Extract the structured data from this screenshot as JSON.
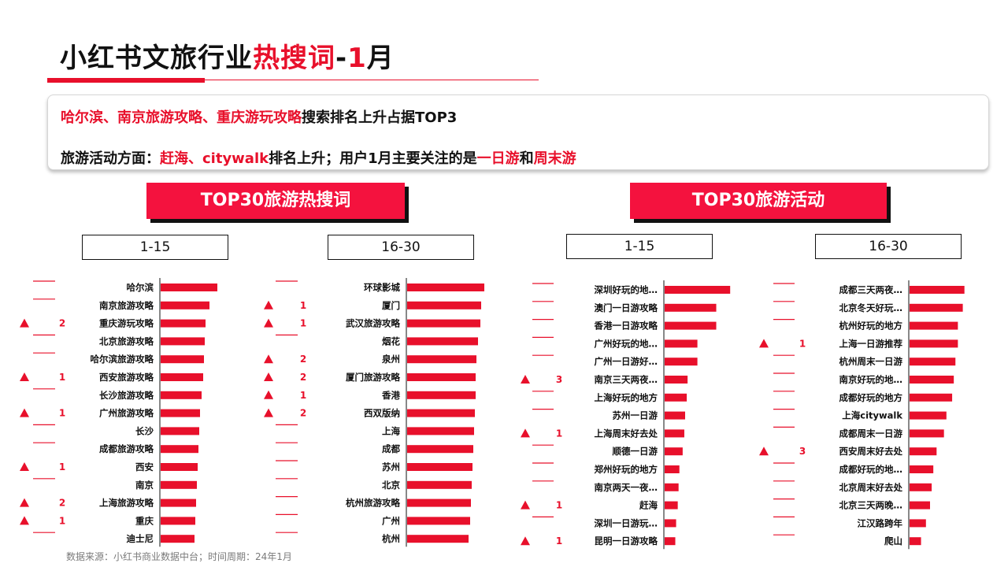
{
  "title": {
    "part1": "小红书文旅行业",
    "part2": "热搜词",
    "part3": "-",
    "part4": "1",
    "part5": "月"
  },
  "summary": {
    "line1": {
      "red": "哈尔滨、南京旅游攻略、重庆游玩攻略",
      "rest": "搜索排名上升占据TOP3"
    },
    "line2": {
      "a": "旅游活动方面：",
      "b": "赶海、citywalk",
      "c": "排名上升；用户1月主要关注的是",
      "d": "一日游",
      "e": "和",
      "f": "周末游"
    }
  },
  "banners": {
    "left": "TOP30旅游热搜词",
    "right": "TOP30旅游活动"
  },
  "ranges": {
    "r1": "1-15",
    "r2": "16-30",
    "r3": "1-15",
    "r4": "16-30"
  },
  "colors": {
    "accent": "#e8102b",
    "bar": "#e8102b"
  },
  "source": "数据来源：小红书商业数据中台；时间周期：24年1月",
  "chart_data": [
    {
      "type": "bar",
      "orientation": "horizontal",
      "categories": [
        "哈尔滨",
        "南京旅游攻略",
        "重庆游玩攻略",
        "北京旅游攻略",
        "哈尔滨旅游攻略",
        "西安旅游攻略",
        "长沙旅游攻略",
        "广州旅游攻略",
        "长沙",
        "成都旅游攻略",
        "西安",
        "南京",
        "上海旅游攻略",
        "重庆",
        "迪士尼"
      ],
      "values": [
        72,
        62,
        57,
        56,
        55,
        54,
        52,
        50,
        49,
        48,
        47,
        46,
        45,
        44,
        43
      ],
      "rank_change": [
        null,
        null,
        2,
        null,
        null,
        1,
        null,
        1,
        null,
        null,
        1,
        null,
        2,
        1,
        null
      ]
    },
    {
      "type": "bar",
      "orientation": "horizontal",
      "categories": [
        "环球影城",
        "厦门",
        "武汉旅游攻略",
        "烟花",
        "泉州",
        "厦门旅游攻略",
        "香港",
        "西双版纳",
        "上海",
        "成都",
        "苏州",
        "北京",
        "杭州旅游攻略",
        "广州",
        "杭州"
      ],
      "values": [
        98,
        94,
        93,
        90,
        88,
        87,
        87,
        86,
        85,
        84,
        83,
        82,
        81,
        80,
        78
      ],
      "rank_change": [
        null,
        1,
        1,
        null,
        2,
        2,
        1,
        2,
        null,
        null,
        null,
        null,
        null,
        null,
        null
      ]
    },
    {
      "type": "bar",
      "orientation": "horizontal",
      "categories": [
        "深圳好玩的地…",
        "澳门一日游攻略",
        "香港一日游攻略",
        "广州好玩的地…",
        "广州一日游好…",
        "南京三天两夜…",
        "上海好玩的地方",
        "苏州一日游",
        "上海周末好去处",
        "顺德一日游",
        "郑州好玩的地方",
        "南京两天一夜…",
        "赶海",
        "深圳一日游玩…",
        "昆明一日游攻略"
      ],
      "values": [
        80,
        63,
        63,
        40,
        40,
        28,
        27,
        25,
        24,
        22,
        18,
        17,
        16,
        14,
        13
      ],
      "rank_change": [
        null,
        null,
        null,
        null,
        null,
        3,
        null,
        null,
        1,
        null,
        null,
        null,
        1,
        null,
        1
      ]
    },
    {
      "type": "bar",
      "orientation": "horizontal",
      "categories": [
        "成都三天两夜…",
        "北京冬天好玩…",
        "杭州好玩的地方",
        "上海一日游推荐",
        "杭州周末一日游",
        "南京好玩的地…",
        "成都好玩的地方",
        "上海citywalk",
        "成都周末一日游",
        "西安周末好去处",
        "成都好玩的地…",
        "北京周末好去处",
        "北京三天两晚…",
        "江汉路跨年",
        "爬山"
      ],
      "values": [
        67,
        65,
        59,
        59,
        56,
        54,
        52,
        45,
        42,
        33,
        29,
        27,
        25,
        20,
        14
      ],
      "rank_change": [
        null,
        null,
        null,
        1,
        null,
        null,
        null,
        null,
        null,
        3,
        null,
        null,
        null,
        null,
        null
      ]
    }
  ]
}
